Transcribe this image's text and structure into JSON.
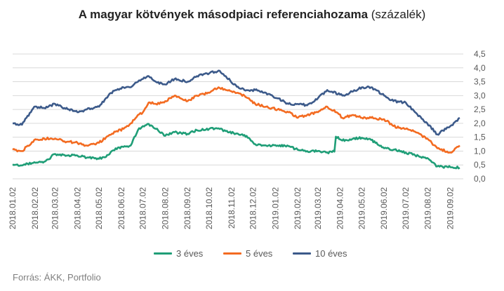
{
  "title": {
    "bold": "A magyar kötvények másodpiaci referenciahozama",
    "normal": "(százalék)"
  },
  "source": "Forrás: ÁKK, Portfolio",
  "chart_data": {
    "type": "line",
    "title": "A magyar kötvények másodpiaci referenciahozama (százalék)",
    "ylim": [
      0,
      4.5
    ],
    "y_ticks": [
      "0,0",
      "0,5",
      "1,0",
      "1,5",
      "2,0",
      "2,5",
      "3,0",
      "3,5",
      "4,0",
      "4,5"
    ],
    "y_axis_position": "right",
    "grid": "horizontal",
    "legend_position": "bottom",
    "x_ticks": [
      "2018.01.02",
      "2018.02.02",
      "2018.03.02",
      "2018.04.02",
      "2018.05.02",
      "2018.06.02",
      "2018.07.02",
      "2018.08.02",
      "2018.09.02",
      "2018.10.02",
      "2018.11.02",
      "2018.12.02",
      "2019.01.02",
      "2019.02.02",
      "2019.03.02",
      "2019.04.02",
      "2019.05.02",
      "2019.06.02",
      "2019.07.02",
      "2019.08.02",
      "2019.09.02"
    ],
    "series": [
      {
        "name": "3 éves",
        "color": "#1f9e77",
        "x": [
          "2018-01-02",
          "2018-01-15",
          "2018-02-01",
          "2018-02-15",
          "2018-02-23",
          "2018-02-26",
          "2018-03-15",
          "2018-04-02",
          "2018-04-15",
          "2018-05-02",
          "2018-05-15",
          "2018-05-25",
          "2018-06-05",
          "2018-06-15",
          "2018-06-25",
          "2018-07-02",
          "2018-07-10",
          "2018-07-20",
          "2018-08-02",
          "2018-08-15",
          "2018-09-02",
          "2018-09-15",
          "2018-10-02",
          "2018-10-15",
          "2018-10-25",
          "2018-11-05",
          "2018-11-20",
          "2018-12-05",
          "2018-12-20",
          "2019-01-05",
          "2019-01-20",
          "2019-02-02",
          "2019-02-15",
          "2019-03-02",
          "2019-03-15",
          "2019-03-25",
          "2019-03-27",
          "2019-04-05",
          "2019-04-20",
          "2019-05-02",
          "2019-05-15",
          "2019-06-02",
          "2019-06-15",
          "2019-07-02",
          "2019-07-15",
          "2019-08-01",
          "2019-08-15",
          "2019-09-02",
          "2019-09-15"
        ],
        "values": [
          0.52,
          0.48,
          0.6,
          0.62,
          0.72,
          0.86,
          0.86,
          0.84,
          0.76,
          0.72,
          0.86,
          1.1,
          1.15,
          1.2,
          1.75,
          1.9,
          1.98,
          1.8,
          1.55,
          1.68,
          1.62,
          1.75,
          1.8,
          1.82,
          1.72,
          1.65,
          1.58,
          1.25,
          1.2,
          1.2,
          1.18,
          1.05,
          1.0,
          1.0,
          0.95,
          0.98,
          1.52,
          1.38,
          1.45,
          1.48,
          1.4,
          1.1,
          1.05,
          0.95,
          0.85,
          0.75,
          0.45,
          0.42,
          0.4
        ]
      },
      {
        "name": "5 éves",
        "color": "#f36b21",
        "x": [
          "2018-01-02",
          "2018-01-15",
          "2018-02-01",
          "2018-02-15",
          "2018-03-02",
          "2018-03-15",
          "2018-04-02",
          "2018-04-15",
          "2018-05-02",
          "2018-05-15",
          "2018-05-25",
          "2018-06-05",
          "2018-06-15",
          "2018-06-25",
          "2018-07-02",
          "2018-07-10",
          "2018-07-20",
          "2018-08-02",
          "2018-08-15",
          "2018-09-02",
          "2018-09-15",
          "2018-10-02",
          "2018-10-15",
          "2018-10-25",
          "2018-11-05",
          "2018-11-20",
          "2018-12-05",
          "2018-12-20",
          "2019-01-05",
          "2019-01-20",
          "2019-02-02",
          "2019-02-15",
          "2019-03-02",
          "2019-03-15",
          "2019-03-28",
          "2019-04-05",
          "2019-04-20",
          "2019-05-02",
          "2019-05-15",
          "2019-06-02",
          "2019-06-15",
          "2019-07-02",
          "2019-07-15",
          "2019-08-01",
          "2019-08-15",
          "2019-09-02",
          "2019-09-15"
        ],
        "values": [
          1.05,
          1.0,
          1.4,
          1.45,
          1.45,
          1.35,
          1.3,
          1.2,
          1.3,
          1.55,
          1.7,
          1.8,
          2.0,
          2.3,
          2.4,
          2.75,
          2.7,
          2.8,
          3.0,
          2.8,
          3.0,
          3.1,
          3.3,
          3.2,
          3.15,
          3.0,
          2.7,
          2.6,
          2.5,
          2.4,
          2.2,
          2.3,
          2.4,
          2.6,
          2.4,
          2.2,
          2.3,
          2.2,
          2.2,
          2.15,
          1.9,
          1.8,
          1.7,
          1.45,
          1.1,
          0.95,
          1.2
        ]
      },
      {
        "name": "10 éves",
        "color": "#3c5a8a",
        "x": [
          "2018-01-02",
          "2018-01-15",
          "2018-02-01",
          "2018-02-15",
          "2018-03-02",
          "2018-03-15",
          "2018-04-02",
          "2018-04-15",
          "2018-05-02",
          "2018-05-15",
          "2018-05-25",
          "2018-06-05",
          "2018-06-15",
          "2018-06-25",
          "2018-07-02",
          "2018-07-10",
          "2018-07-20",
          "2018-08-02",
          "2018-08-15",
          "2018-09-02",
          "2018-09-15",
          "2018-10-02",
          "2018-10-15",
          "2018-10-25",
          "2018-11-05",
          "2018-11-20",
          "2018-12-05",
          "2018-12-20",
          "2019-01-05",
          "2019-01-20",
          "2019-02-02",
          "2019-02-15",
          "2019-03-02",
          "2019-03-15",
          "2019-04-05",
          "2019-04-20",
          "2019-05-02",
          "2019-05-15",
          "2019-06-02",
          "2019-06-15",
          "2019-07-02",
          "2019-07-15",
          "2019-08-01",
          "2019-08-15",
          "2019-09-02",
          "2019-09-15"
        ],
        "values": [
          2.0,
          1.95,
          2.6,
          2.55,
          2.7,
          2.55,
          2.4,
          2.5,
          2.6,
          3.0,
          3.2,
          3.3,
          3.3,
          3.5,
          3.6,
          3.7,
          3.5,
          3.4,
          3.6,
          3.5,
          3.7,
          3.8,
          3.9,
          3.7,
          3.4,
          3.2,
          3.2,
          3.1,
          2.9,
          2.7,
          2.7,
          2.65,
          2.9,
          3.2,
          3.0,
          3.15,
          3.3,
          3.3,
          3.0,
          2.8,
          2.75,
          2.4,
          2.0,
          1.6,
          1.9,
          2.2
        ]
      }
    ]
  }
}
